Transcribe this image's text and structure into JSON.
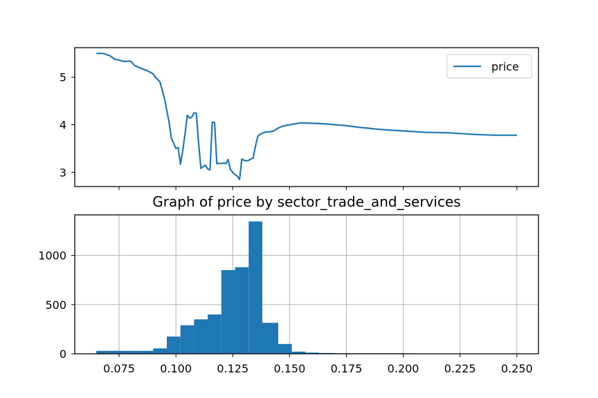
{
  "chart_data": [
    {
      "type": "line",
      "title": "",
      "xlabel": "",
      "ylabel": "",
      "ylim": [
        2.7,
        5.62
      ],
      "yticks": [
        3,
        4,
        5
      ],
      "grid": false,
      "legend_position": "top-right",
      "series": [
        {
          "name": "price",
          "color": "#1f77b4",
          "x": [
            0.065,
            0.068,
            0.071,
            0.073,
            0.075,
            0.077,
            0.08,
            0.082,
            0.085,
            0.088,
            0.09,
            0.091,
            0.093,
            0.095,
            0.097,
            0.098,
            0.1,
            0.101,
            0.102,
            0.103,
            0.104,
            0.105,
            0.106,
            0.107,
            0.108,
            0.109,
            0.11,
            0.111,
            0.112,
            0.113,
            0.114,
            0.115,
            0.116,
            0.117,
            0.118,
            0.119,
            0.12,
            0.121,
            0.122,
            0.123,
            0.124,
            0.125,
            0.126,
            0.127,
            0.128,
            0.129,
            0.13,
            0.131,
            0.132,
            0.133,
            0.134,
            0.135,
            0.136,
            0.137,
            0.138,
            0.139,
            0.14,
            0.141,
            0.142,
            0.143,
            0.144,
            0.145,
            0.147,
            0.15,
            0.155,
            0.16,
            0.165,
            0.17,
            0.175,
            0.18,
            0.19,
            0.2,
            0.21,
            0.22,
            0.23,
            0.24,
            0.25
          ],
          "y": [
            5.5,
            5.5,
            5.45,
            5.38,
            5.36,
            5.33,
            5.34,
            5.24,
            5.18,
            5.12,
            5.07,
            5.0,
            4.9,
            4.55,
            4.05,
            3.72,
            3.5,
            3.52,
            3.17,
            3.45,
            3.8,
            4.2,
            4.14,
            4.16,
            4.25,
            4.24,
            3.6,
            3.08,
            3.12,
            3.15,
            3.07,
            3.05,
            4.05,
            4.05,
            3.18,
            3.19,
            3.18,
            3.2,
            3.18,
            3.27,
            3.05,
            3.0,
            2.95,
            2.92,
            2.85,
            3.28,
            3.25,
            3.24,
            3.25,
            3.28,
            3.3,
            3.55,
            3.75,
            3.8,
            3.82,
            3.84,
            3.85,
            3.85,
            3.86,
            3.87,
            3.9,
            3.93,
            3.97,
            4.0,
            4.04,
            4.03,
            4.02,
            4.0,
            3.98,
            3.95,
            3.9,
            3.87,
            3.84,
            3.83,
            3.8,
            3.78,
            3.78
          ]
        }
      ]
    },
    {
      "type": "bar",
      "title": "Graph of price by sector_trade_and_services",
      "xlabel": "",
      "ylabel": "",
      "xlim": [
        0.0555,
        0.2595
      ],
      "ylim": [
        0,
        1412
      ],
      "xticks": [
        0.075,
        0.1,
        0.125,
        0.15,
        0.175,
        0.2,
        0.225,
        0.25
      ],
      "xtick_labels": [
        "0.075",
        "0.100",
        "0.125",
        "0.150",
        "0.175",
        "0.200",
        "0.225",
        "0.250"
      ],
      "yticks": [
        0,
        500,
        1000
      ],
      "ytick_labels": [
        "0",
        "500",
        "1000"
      ],
      "grid": true,
      "bar_color": "#1f77b4",
      "bins": [
        [
          0.065,
          0.07,
          30
        ],
        [
          0.07,
          0.075,
          30
        ],
        [
          0.075,
          0.08,
          30
        ],
        [
          0.08,
          0.085,
          30
        ],
        [
          0.085,
          0.09,
          30
        ],
        [
          0.09,
          0.096,
          55
        ],
        [
          0.096,
          0.102,
          175
        ],
        [
          0.102,
          0.108,
          290
        ],
        [
          0.108,
          0.114,
          350
        ],
        [
          0.114,
          0.12,
          400
        ],
        [
          0.12,
          0.126,
          850
        ],
        [
          0.126,
          0.132,
          880
        ],
        [
          0.132,
          0.138,
          1345
        ],
        [
          0.138,
          0.145,
          315
        ],
        [
          0.145,
          0.151,
          100
        ],
        [
          0.151,
          0.157,
          22
        ],
        [
          0.157,
          0.163,
          12
        ],
        [
          0.163,
          0.17,
          8
        ],
        [
          0.17,
          0.2,
          5
        ],
        [
          0.2,
          0.207,
          4
        ]
      ]
    }
  ]
}
